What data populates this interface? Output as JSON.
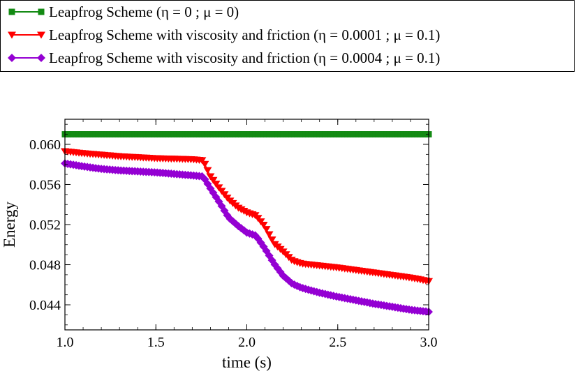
{
  "chart_data": {
    "type": "line",
    "title": "",
    "xlabel": "time (s)",
    "ylabel": "Energy",
    "xlim": [
      1.0,
      3.0
    ],
    "ylim": [
      0.0415,
      0.0625
    ],
    "xticks": [
      "1.0",
      "1.5",
      "2.0",
      "2.5",
      "3.0"
    ],
    "yticks": [
      "0.044",
      "0.048",
      "0.052",
      "0.056",
      "0.060"
    ],
    "grid": false,
    "legend_position": "top, outside the plot area",
    "x": [
      1.0,
      1.1,
      1.2,
      1.3,
      1.4,
      1.5,
      1.6,
      1.7,
      1.76,
      1.8,
      1.85,
      1.9,
      1.95,
      2.0,
      2.05,
      2.1,
      2.15,
      2.2,
      2.25,
      2.3,
      2.4,
      2.5,
      2.6,
      2.7,
      2.8,
      2.9,
      3.0
    ],
    "series": [
      {
        "name": "Leapfrog Scheme  (η = 0 ; μ = 0)",
        "color": "#138a13",
        "marker": "square",
        "values": [
          0.061,
          0.061,
          0.061,
          0.061,
          0.061,
          0.061,
          0.061,
          0.061,
          0.061,
          0.061,
          0.061,
          0.061,
          0.061,
          0.061,
          0.061,
          0.061,
          0.061,
          0.061,
          0.061,
          0.061,
          0.061,
          0.061,
          0.061,
          0.061,
          0.061,
          0.061,
          0.061
        ]
      },
      {
        "name": "Leapfrog Scheme with viscosity and friction (η = 0.0001 ; μ = 0.1)",
        "color": "#ff0000",
        "marker": "triangle-down",
        "values": [
          0.0593,
          0.0591,
          0.05895,
          0.0588,
          0.0587,
          0.0586,
          0.05855,
          0.0585,
          0.0584,
          0.0568,
          0.0556,
          0.0545,
          0.0537,
          0.0532,
          0.0529,
          0.0518,
          0.0501,
          0.0493,
          0.0484,
          0.0481,
          0.0479,
          0.0477,
          0.04745,
          0.0472,
          0.04695,
          0.0467,
          0.04635
        ]
      },
      {
        "name": "Leapfrog Scheme with viscosity and friction (η = 0.0004 ; μ = 0.1)",
        "color": "#9400d3",
        "marker": "diamond",
        "values": [
          0.0581,
          0.0578,
          0.05755,
          0.0574,
          0.0573,
          0.0572,
          0.05705,
          0.0569,
          0.0568,
          0.0556,
          0.0542,
          0.0527,
          0.0519,
          0.0512,
          0.0509,
          0.0496,
          0.0481,
          0.0469,
          0.0461,
          0.0457,
          0.0452,
          0.0448,
          0.04445,
          0.0441,
          0.0438,
          0.0435,
          0.0433
        ]
      }
    ]
  }
}
